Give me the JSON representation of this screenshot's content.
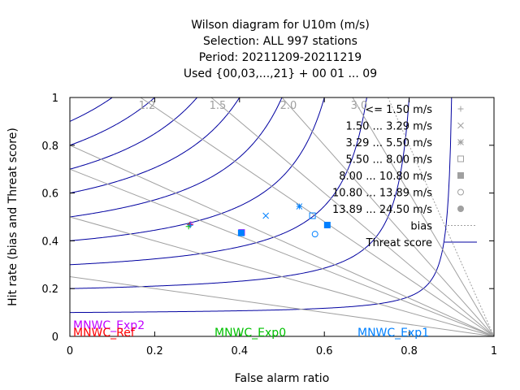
{
  "chart_data": {
    "type": "scatter",
    "title_lines": [
      "Wilson diagram  for U10m (m/s)",
      "Selection: ALL    997 stations",
      "Period: 20211209-20211219",
      "Used {00,03,...,21} + 00 01 ... 09"
    ],
    "xlabel": "False alarm ratio",
    "ylabel": "Hit rate (bias and Threat score)",
    "xlim": [
      0,
      1
    ],
    "ylim": [
      0,
      1
    ],
    "xticks": [
      "0",
      "0.2",
      "0.4",
      "0.6",
      "0.8",
      "1"
    ],
    "yticks": [
      "0",
      "0.2",
      "0.4",
      "0.6",
      "0.8",
      "1"
    ],
    "bias_labels": [
      "1.2",
      "1.5",
      "2.0",
      "3.0"
    ],
    "legend_position": "top-right",
    "legend": [
      {
        "label": "<= 1.50 m/s",
        "symbol": "plus"
      },
      {
        "label": "1.50 ... 3.29 m/s",
        "symbol": "cross"
      },
      {
        "label": "3.29 ... 5.50 m/s",
        "symbol": "star"
      },
      {
        "label": "5.50 ... 8.00 m/s",
        "symbol": "open-square"
      },
      {
        "label": "8.00 ... 10.80 m/s",
        "symbol": "filled-square"
      },
      {
        "label": "10.80 ... 13.89 m/s",
        "symbol": "open-circle"
      },
      {
        "label": "13.89 ... 24.50 m/s",
        "symbol": "filled-circle"
      },
      {
        "label": "bias",
        "symbol": "dotted-line"
      },
      {
        "label": "Threat score",
        "symbol": "solid-line"
      }
    ],
    "bias_values": [
      0.25,
      0.5,
      0.7,
      0.8,
      1.2,
      1.5,
      2.0,
      3.0,
      4.0
    ],
    "threat_score_values": [
      0.1,
      0.2,
      0.3,
      0.4,
      0.5,
      0.6,
      0.7,
      0.8,
      0.9
    ],
    "series": [
      {
        "name": "MNWC_Exp2",
        "color": "#c000ff",
        "points": [
          {
            "symbol": "plus",
            "x": 0.285,
            "y": 0.47
          },
          {
            "symbol": "filled-square",
            "x": 0.405,
            "y": 0.435
          }
        ]
      },
      {
        "name": "MNWC_Ref",
        "color": "#ff0000",
        "points": [
          {
            "symbol": "plus",
            "x": 0.283,
            "y": 0.468
          }
        ]
      },
      {
        "name": "MNWC_Exp0",
        "color": "#00c000",
        "points": [
          {
            "symbol": "plus",
            "x": 0.28,
            "y": 0.46
          }
        ]
      },
      {
        "name": "MNWC_Exp1",
        "color": "#0080ff",
        "points": [
          {
            "symbol": "plus",
            "x": 0.284,
            "y": 0.465
          },
          {
            "symbol": "cross",
            "x": 0.462,
            "y": 0.505
          },
          {
            "symbol": "star",
            "x": 0.541,
            "y": 0.544
          },
          {
            "symbol": "open-square",
            "x": 0.572,
            "y": 0.505
          },
          {
            "symbol": "filled-square",
            "x": 0.607,
            "y": 0.466
          },
          {
            "symbol": "open-circle",
            "x": 0.578,
            "y": 0.428
          },
          {
            "symbol": "filled-square",
            "x": 0.404,
            "y": 0.433
          }
        ]
      }
    ],
    "colors": {
      "threat_line": "#0000a0",
      "bias_line": "#a0a0a0",
      "legend_symbol": "#a0a0a0",
      "text": "#000000"
    }
  }
}
